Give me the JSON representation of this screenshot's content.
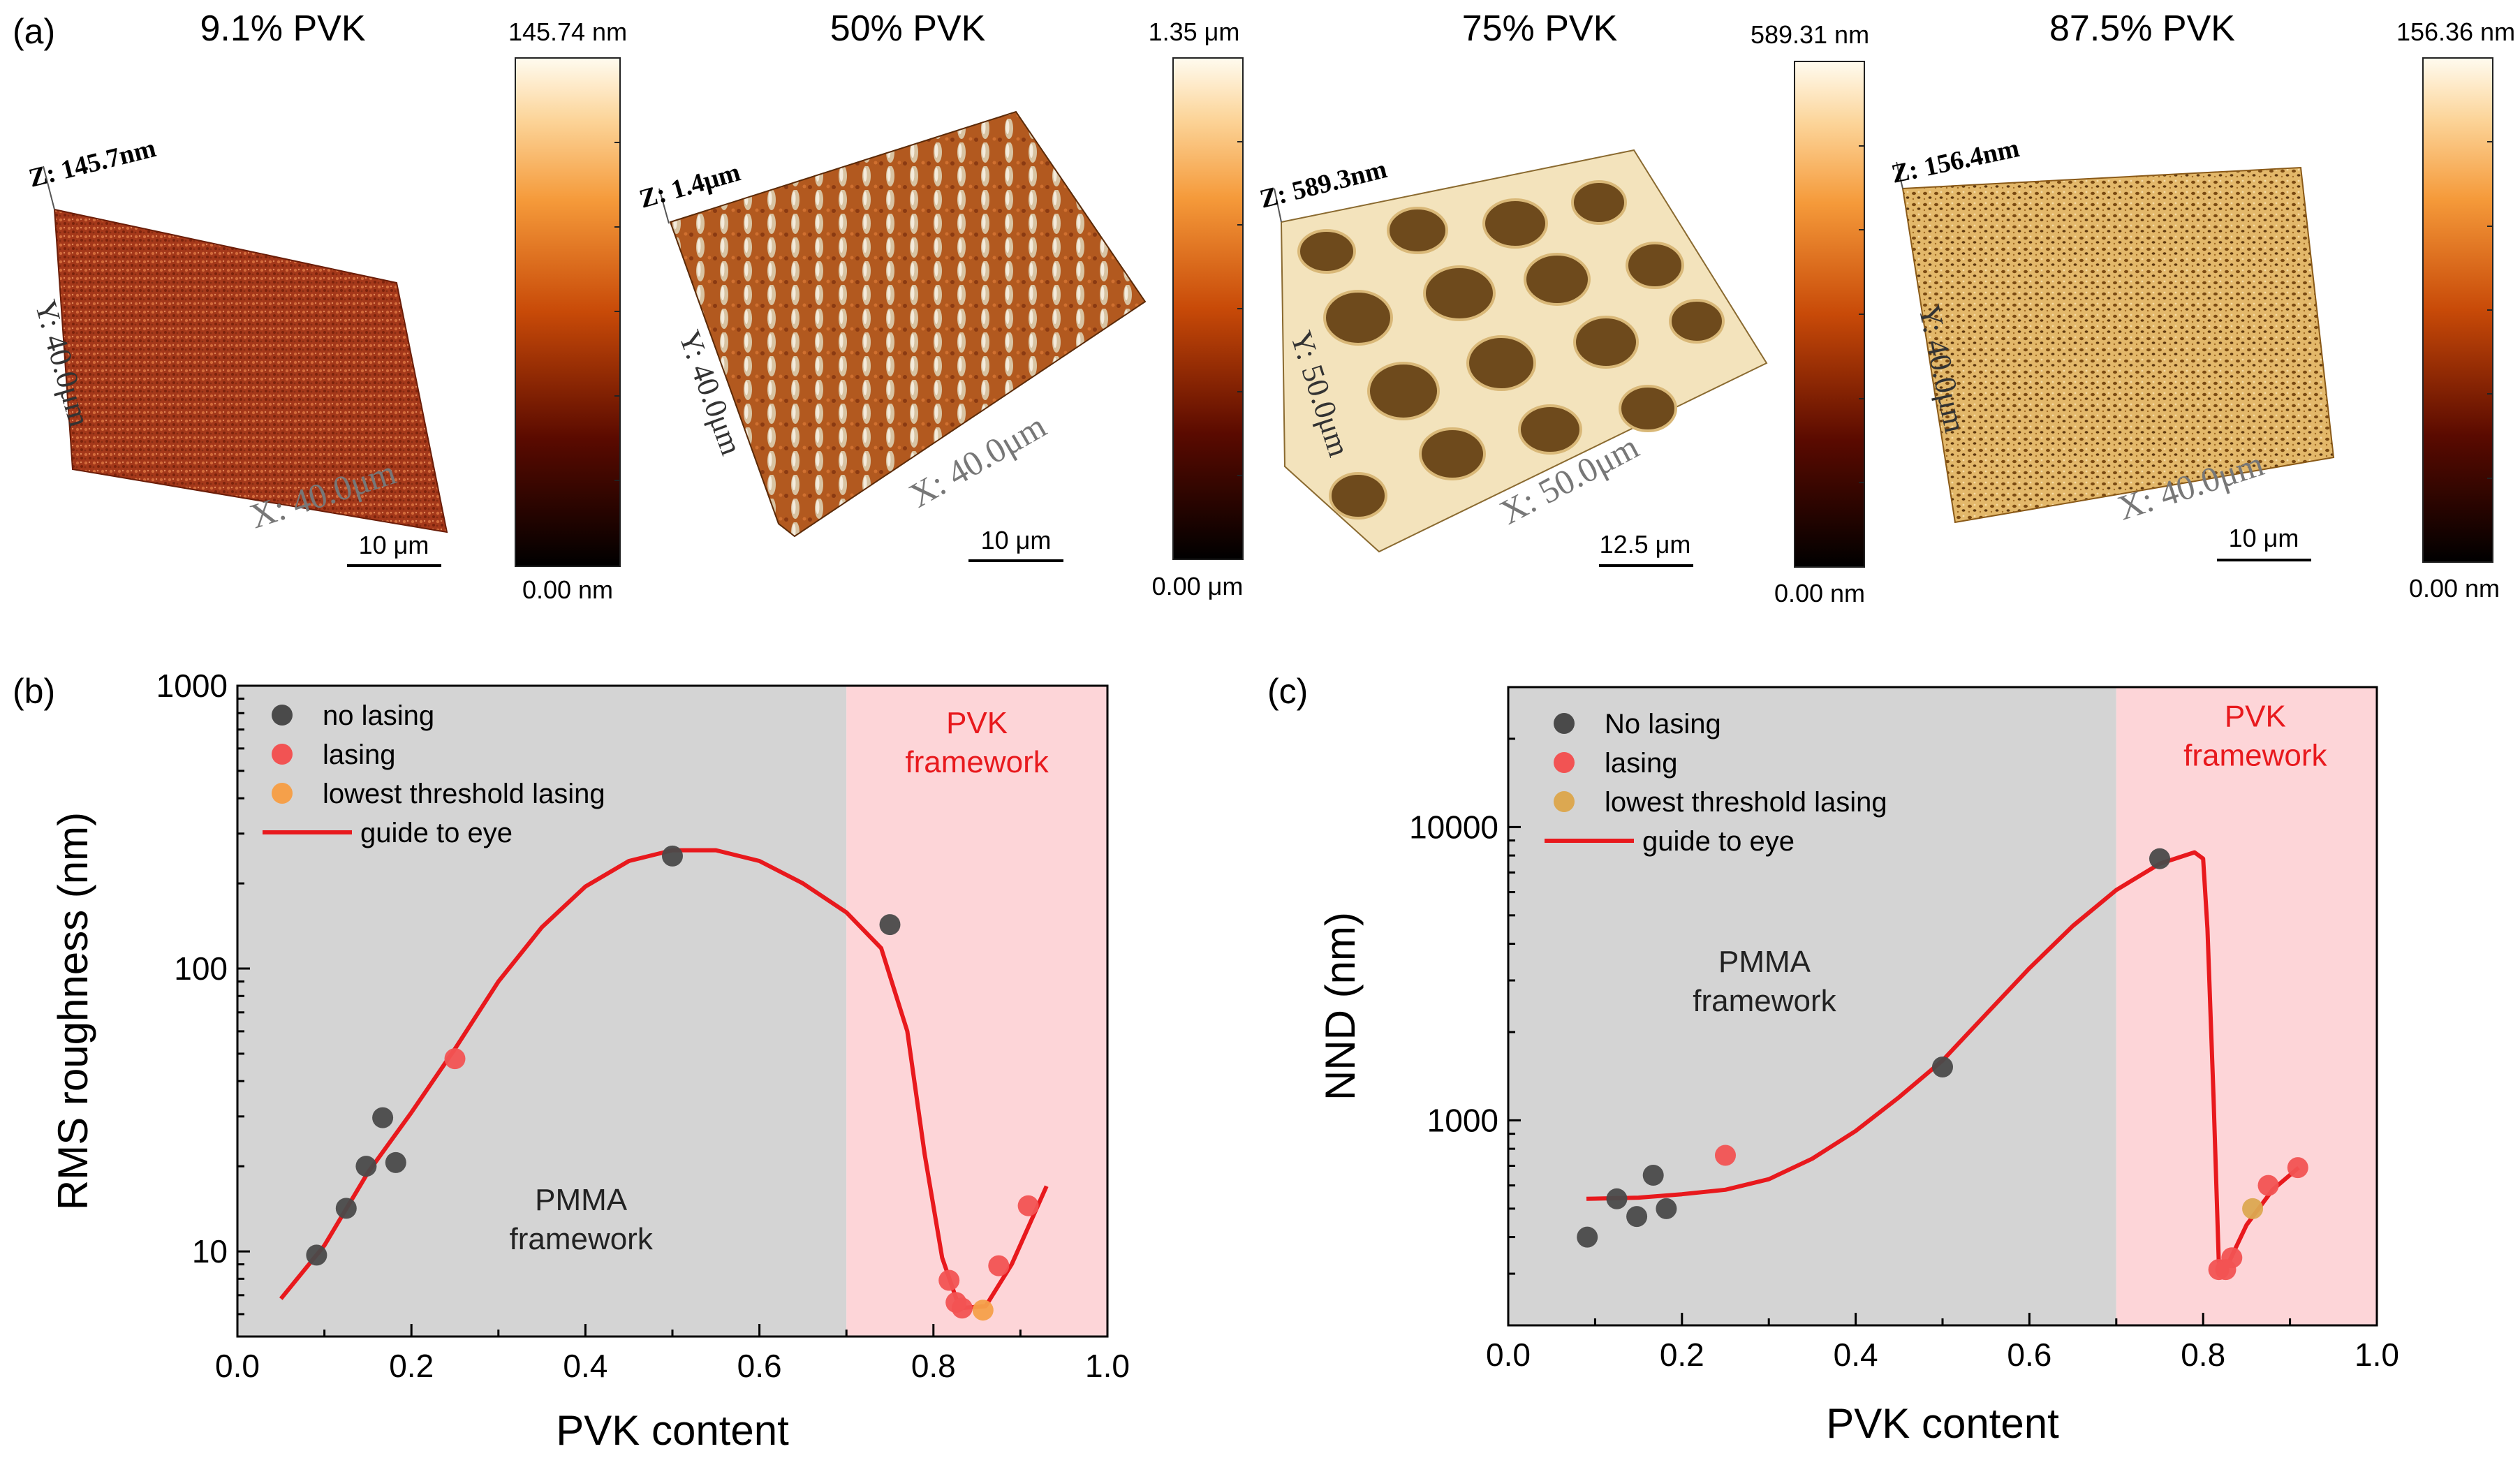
{
  "figure": {
    "panel_labels": {
      "a": "(a)",
      "b": "(b)",
      "c": "(c)"
    }
  },
  "afm": [
    {
      "title": "9.1% PVK",
      "z_label": "Z: 145.7nm",
      "y_label": "Y: 40.0μm",
      "x_label": "X: 40.0μm",
      "scale_bar": "10 μm",
      "colorbar_max": "145.74 nm",
      "colorbar_min": "0.00 nm",
      "surface": "rough-dense"
    },
    {
      "title": "50% PVK",
      "z_label": "Z: 1.4μm",
      "y_label": "Y: 40.0μm",
      "x_label": "X: 40.0μm",
      "scale_bar": "10 μm",
      "colorbar_max": "1.35 μm",
      "colorbar_min": "0.00 μm",
      "surface": "spikes"
    },
    {
      "title": "75% PVK",
      "z_label": "Z: 589.3nm",
      "y_label": "Y: 50.0μm",
      "x_label": "X: 50.0μm",
      "scale_bar": "12.5 μm",
      "colorbar_max": "589.31 nm",
      "colorbar_min": "0.00 nm",
      "surface": "pores"
    },
    {
      "title": "87.5% PVK",
      "z_label": "Z: 156.4nm",
      "y_label": "Y: 40.0μm",
      "x_label": "X: 40.0μm",
      "scale_bar": "10 μm",
      "colorbar_max": "156.36 nm",
      "colorbar_min": "0.00 nm",
      "surface": "porous-flat"
    }
  ],
  "colors": {
    "gray_region": "#d4d4d4",
    "pink_region": "#fdd5d8",
    "no_lasing": "#4a4a4a",
    "lasing": "#f25353",
    "lowest": "#f5a04a",
    "lowest_c": "#dca851",
    "guide": "#e8191d",
    "framework_text": "#e8191d"
  },
  "chart_data": [
    {
      "type": "scatter",
      "title": "",
      "xlabel": "PVK content",
      "ylabel": "RMS roughness (nm)",
      "yscale": "log",
      "xlim": [
        0.0,
        1.0
      ],
      "ylim": [
        5,
        1000
      ],
      "x_ticks": [
        "0.0",
        "0.2",
        "0.4",
        "0.6",
        "0.8",
        "1.0"
      ],
      "x_tick_values": [
        0.0,
        0.2,
        0.4,
        0.6,
        0.8,
        1.0
      ],
      "y_ticks": [
        "10",
        "100",
        "1000"
      ],
      "y_tick_values": [
        10,
        100,
        1000
      ],
      "regions": [
        {
          "name": "PMMA framework",
          "x_from": 0.0,
          "x_to": 0.7,
          "label": "PMMA\nframework",
          "label_x": 0.395,
          "label_y": 14
        },
        {
          "name": "PVK framework",
          "x_from": 0.7,
          "x_to": 1.0,
          "label": "PVK\nframework",
          "label_x": 0.85,
          "label_y": 680
        }
      ],
      "legend": [
        {
          "label": "no lasing",
          "kind": "marker",
          "color_key": "no_lasing"
        },
        {
          "label": "lasing",
          "kind": "marker",
          "color_key": "lasing"
        },
        {
          "label": "lowest threshold lasing",
          "kind": "marker",
          "color_key": "lowest"
        },
        {
          "label": "guide to eye",
          "kind": "line",
          "color_key": "guide"
        }
      ],
      "legend_position": "top-left",
      "series": [
        {
          "name": "no lasing",
          "color_key": "no_lasing",
          "points": [
            [
              0.091,
              9.7
            ],
            [
              0.125,
              14.2
            ],
            [
              0.148,
              20.0
            ],
            [
              0.167,
              29.7
            ],
            [
              0.182,
              20.6
            ],
            [
              0.5,
              250
            ],
            [
              0.75,
              143
            ]
          ]
        },
        {
          "name": "lasing",
          "color_key": "lasing",
          "points": [
            [
              0.25,
              48
            ],
            [
              0.818,
              7.9
            ],
            [
              0.826,
              6.6
            ],
            [
              0.833,
              6.3
            ],
            [
              0.875,
              8.9
            ],
            [
              0.909,
              14.5
            ]
          ]
        },
        {
          "name": "lowest threshold lasing",
          "color_key": "lowest",
          "points": [
            [
              0.857,
              6.2
            ]
          ]
        }
      ],
      "guide_curve": [
        [
          0.05,
          6.8
        ],
        [
          0.1,
          10.5
        ],
        [
          0.15,
          19
        ],
        [
          0.2,
          31
        ],
        [
          0.25,
          52
        ],
        [
          0.3,
          90
        ],
        [
          0.35,
          140
        ],
        [
          0.4,
          195
        ],
        [
          0.45,
          240
        ],
        [
          0.5,
          262
        ],
        [
          0.55,
          262
        ],
        [
          0.6,
          240
        ],
        [
          0.65,
          200
        ],
        [
          0.7,
          158
        ],
        [
          0.74,
          118
        ],
        [
          0.77,
          60
        ],
        [
          0.79,
          22
        ],
        [
          0.81,
          9.5
        ],
        [
          0.83,
          6.3
        ],
        [
          0.86,
          6.4
        ],
        [
          0.89,
          9
        ],
        [
          0.93,
          17
        ]
      ]
    },
    {
      "type": "scatter",
      "title": "",
      "xlabel": "PVK content",
      "ylabel": "NND (nm)",
      "yscale": "log",
      "xlim": [
        0.0,
        1.0
      ],
      "ylim": [
        200,
        30000
      ],
      "x_ticks": [
        "0.0",
        "0.2",
        "0.4",
        "0.6",
        "0.8",
        "1.0"
      ],
      "x_tick_values": [
        0.0,
        0.2,
        0.4,
        0.6,
        0.8,
        1.0
      ],
      "y_ticks": [
        "1000",
        "10000"
      ],
      "y_tick_values": [
        1000,
        10000
      ],
      "regions": [
        {
          "name": "PMMA framework",
          "x_from": 0.0,
          "x_to": 0.7,
          "label": "PMMA\nframework",
          "label_x": 0.295,
          "label_y": 3200
        },
        {
          "name": "PVK framework",
          "x_from": 0.7,
          "x_to": 1.0,
          "label": "PVK\nframework",
          "label_x": 0.86,
          "label_y": 22000
        }
      ],
      "legend": [
        {
          "label": "No lasing",
          "kind": "marker",
          "color_key": "no_lasing"
        },
        {
          "label": "lasing",
          "kind": "marker",
          "color_key": "lasing"
        },
        {
          "label": "lowest threshold lasing",
          "kind": "marker",
          "color_key": "lowest_c"
        },
        {
          "label": "guide to eye",
          "kind": "line",
          "color_key": "guide"
        }
      ],
      "legend_position": "top-left",
      "series": [
        {
          "name": "No lasing",
          "color_key": "no_lasing",
          "points": [
            [
              0.091,
              400
            ],
            [
              0.125,
              540
            ],
            [
              0.148,
              470
            ],
            [
              0.167,
              650
            ],
            [
              0.182,
              500
            ],
            [
              0.5,
              1520
            ],
            [
              0.75,
              7800
            ]
          ]
        },
        {
          "name": "lasing",
          "color_key": "lasing",
          "points": [
            [
              0.25,
              760
            ],
            [
              0.818,
              310
            ],
            [
              0.826,
              310
            ],
            [
              0.833,
              340
            ],
            [
              0.875,
              600
            ],
            [
              0.909,
              690
            ]
          ]
        },
        {
          "name": "lowest threshold lasing",
          "color_key": "lowest_c",
          "points": [
            [
              0.857,
              500
            ]
          ]
        }
      ],
      "guide_curve": [
        [
          0.09,
          540
        ],
        [
          0.15,
          545
        ],
        [
          0.2,
          560
        ],
        [
          0.25,
          580
        ],
        [
          0.3,
          630
        ],
        [
          0.35,
          740
        ],
        [
          0.4,
          920
        ],
        [
          0.45,
          1200
        ],
        [
          0.5,
          1600
        ],
        [
          0.55,
          2300
        ],
        [
          0.6,
          3300
        ],
        [
          0.65,
          4600
        ],
        [
          0.7,
          6100
        ],
        [
          0.75,
          7500
        ],
        [
          0.79,
          8200
        ],
        [
          0.8,
          7800
        ],
        [
          0.805,
          4500
        ],
        [
          0.812,
          1200
        ],
        [
          0.818,
          330
        ],
        [
          0.83,
          330
        ],
        [
          0.85,
          440
        ],
        [
          0.88,
          580
        ],
        [
          0.91,
          690
        ]
      ]
    }
  ]
}
